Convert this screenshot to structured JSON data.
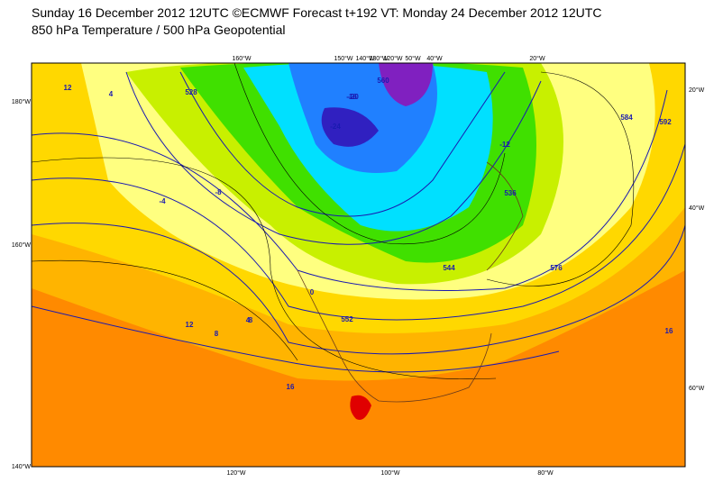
{
  "header": {
    "title": "Sunday 16 December 2012 12UTC ©ECMWF Forecast t+192 VT: Monday 24 December 2012 12UTC",
    "subtitle": "850 hPa Temperature / 500 hPa Geopotential"
  },
  "map": {
    "top_labels": [
      "160°W",
      "150°W",
      "140°W",
      "130°W",
      "120°W",
      "50°W",
      "40°W",
      "20°W"
    ],
    "left_labels": [
      "180°W",
      "160°W",
      "140°W"
    ],
    "right_labels": [
      "20°W",
      "40°W",
      "60°W"
    ],
    "bottom_labels": [
      "120°W",
      "100°W",
      "80°W"
    ],
    "contour_labels": [
      "12",
      "4",
      "8",
      "528",
      "-4",
      "-8",
      "-12",
      "-16",
      "-20",
      "-24",
      "536",
      "552",
      "0",
      "16",
      "576",
      "584",
      "592",
      "560",
      "544",
      "12",
      "8",
      "4",
      "16"
    ]
  }
}
